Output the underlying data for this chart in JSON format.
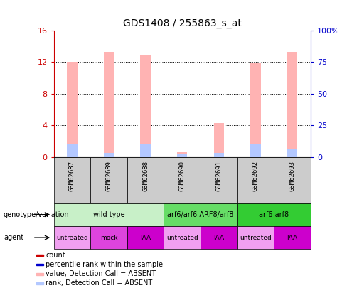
{
  "title": "GDS1408 / 255863_s_at",
  "samples": [
    "GSM62687",
    "GSM62689",
    "GSM62688",
    "GSM62690",
    "GSM62691",
    "GSM62692",
    "GSM62693"
  ],
  "pink_bar_values": [
    12.0,
    13.3,
    12.8,
    0.6,
    4.3,
    11.8,
    13.3
  ],
  "blue_bar_values": [
    1.6,
    0.5,
    1.6,
    0.4,
    0.5,
    1.6,
    1.0
  ],
  "ylim_left": [
    0,
    16
  ],
  "ylim_right": [
    0,
    100
  ],
  "yticks_left": [
    0,
    4,
    8,
    12,
    16
  ],
  "yticks_right": [
    0,
    25,
    50,
    75,
    100
  ],
  "ytick_labels_left": [
    "0",
    "4",
    "8",
    "12",
    "16"
  ],
  "ytick_labels_right": [
    "0",
    "25",
    "50",
    "75",
    "100%"
  ],
  "grid_lines": [
    4,
    8,
    12
  ],
  "genotype_groups": [
    {
      "label": "wild type",
      "start": 0,
      "end": 3,
      "color": "#c8f0c8"
    },
    {
      "label": "arf6/arf6 ARF8/arf8",
      "start": 3,
      "end": 5,
      "color": "#66dd66"
    },
    {
      "label": "arf6 arf8",
      "start": 5,
      "end": 7,
      "color": "#33cc33"
    }
  ],
  "agent_groups": [
    {
      "label": "untreated",
      "start": 0,
      "end": 1,
      "color": "#f0a0f0"
    },
    {
      "label": "mock",
      "start": 1,
      "end": 2,
      "color": "#dd44dd"
    },
    {
      "label": "IAA",
      "start": 2,
      "end": 3,
      "color": "#cc00cc"
    },
    {
      "label": "untreated",
      "start": 3,
      "end": 4,
      "color": "#f0a0f0"
    },
    {
      "label": "IAA",
      "start": 4,
      "end": 5,
      "color": "#cc00cc"
    },
    {
      "label": "untreated",
      "start": 5,
      "end": 6,
      "color": "#f0a0f0"
    },
    {
      "label": "IAA",
      "start": 6,
      "end": 7,
      "color": "#cc00cc"
    }
  ],
  "legend_items": [
    {
      "label": "count",
      "color": "#cc0000"
    },
    {
      "label": "percentile rank within the sample",
      "color": "#0000cc"
    },
    {
      "label": "value, Detection Call = ABSENT",
      "color": "#ffb3b3"
    },
    {
      "label": "rank, Detection Call = ABSENT",
      "color": "#b3c8ff"
    }
  ],
  "left_axis_color": "#cc0000",
  "right_axis_color": "#0000cc",
  "bar_width": 0.28
}
